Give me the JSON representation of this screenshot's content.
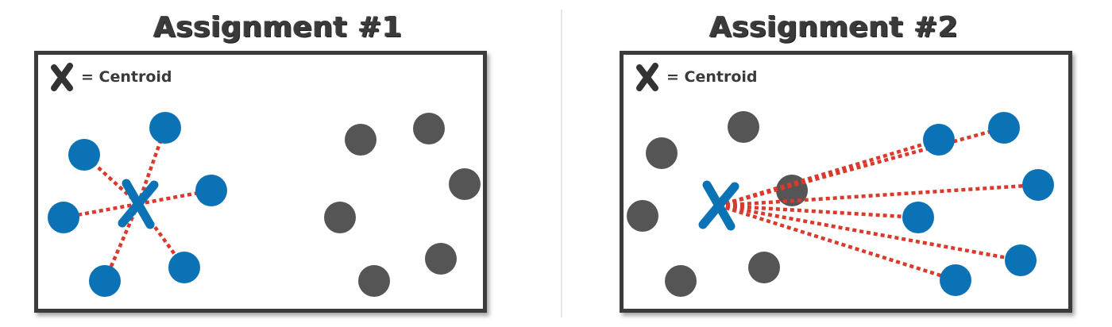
{
  "colors": {
    "cluster": "#0a72b5",
    "other": "#555555",
    "line": "#d93a2b",
    "centroid": "#0a72b5",
    "legend_mark": "#333333"
  },
  "legend_text": "= Centroid",
  "panels": [
    {
      "title": "Assignment #1",
      "centroid": [
        126,
        188
      ],
      "blue_points": [
        [
          160,
          92
        ],
        [
          58,
          126
        ],
        [
          218,
          171
        ],
        [
          32,
          205
        ],
        [
          184,
          268
        ],
        [
          84,
          285
        ]
      ],
      "gray_points": [
        [
          406,
          107
        ],
        [
          492,
          93
        ],
        [
          537,
          163
        ],
        [
          380,
          205
        ],
        [
          507,
          257
        ],
        [
          423,
          285
        ]
      ]
    },
    {
      "title": "Assignment #2",
      "centroid": [
        120,
        190
      ],
      "blue_points": [
        [
          397,
          107
        ],
        [
          479,
          92
        ],
        [
          522,
          164
        ],
        [
          371,
          205
        ],
        [
          500,
          259
        ],
        [
          418,
          284
        ]
      ],
      "gray_points": [
        [
          151,
          91
        ],
        [
          48,
          124
        ],
        [
          212,
          171
        ],
        [
          24,
          203
        ],
        [
          177,
          268
        ],
        [
          72,
          285
        ]
      ]
    }
  ]
}
